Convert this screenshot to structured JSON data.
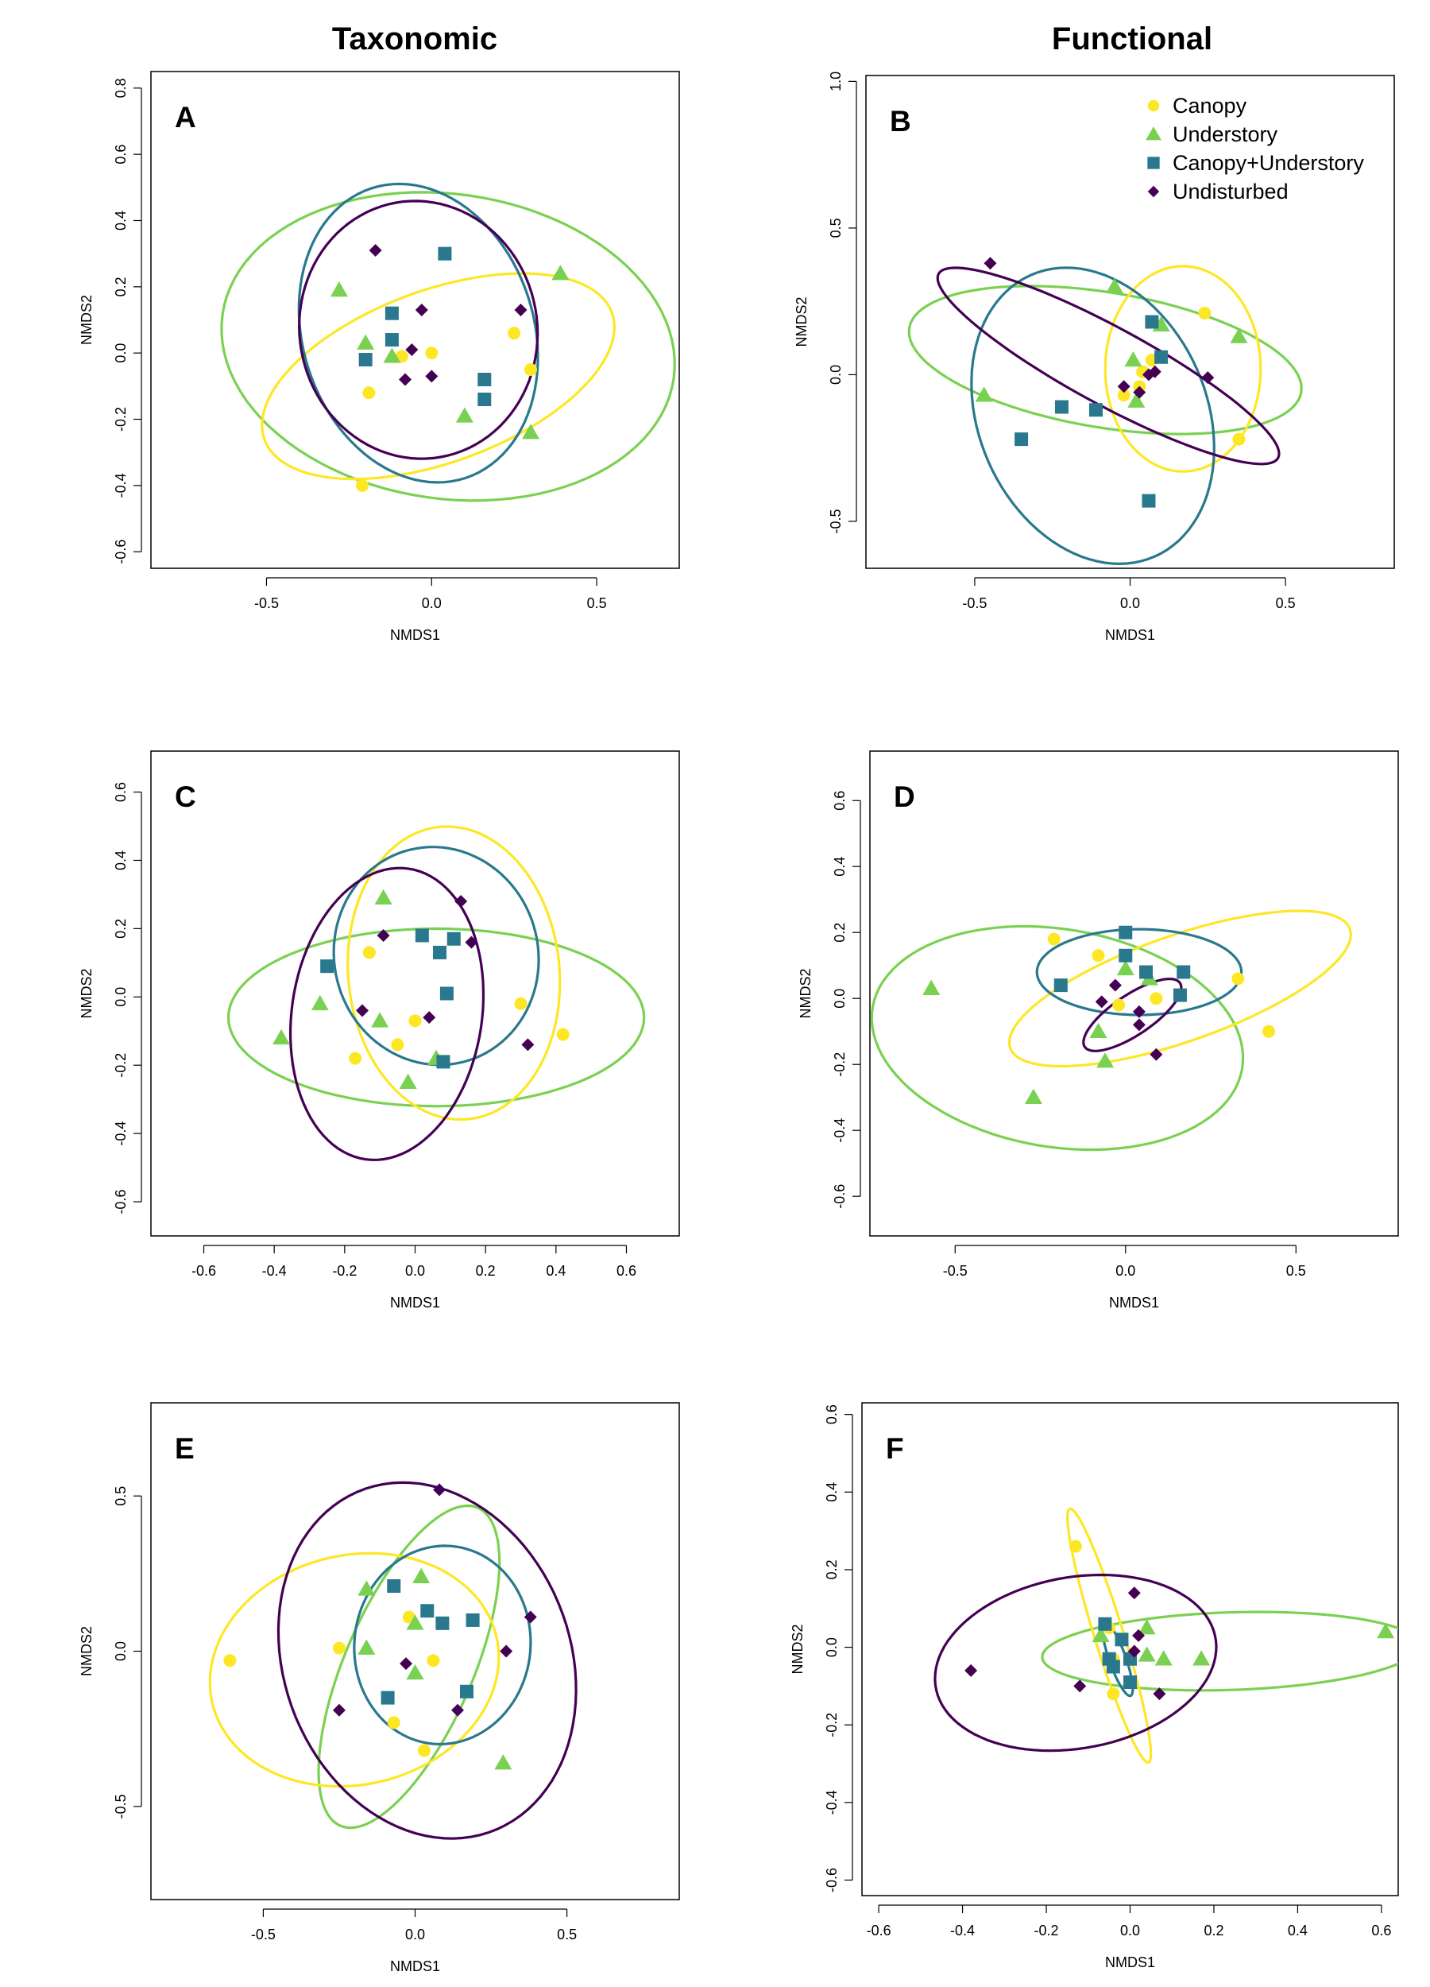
{
  "column_titles": [
    "Taxonomic",
    "Functional"
  ],
  "legend": {
    "panel": "B",
    "items": [
      {
        "label": "Canopy",
        "group": "canopy"
      },
      {
        "label": "Understory",
        "group": "understory"
      },
      {
        "label": "Canopy+Understory",
        "group": "cu"
      },
      {
        "label": "Undisturbed",
        "group": "undisturbed"
      }
    ]
  },
  "groups": {
    "canopy": {
      "color": "#FDE725",
      "marker": "circle"
    },
    "understory": {
      "color": "#7AD151",
      "marker": "triangle"
    },
    "cu": {
      "color": "#2A788E",
      "marker": "square"
    },
    "undisturbed": {
      "color": "#440154",
      "marker": "diamond"
    }
  },
  "chart_data": [
    {
      "type": "scatter",
      "panel": "A",
      "xlabel": "NMDS1",
      "ylabel": "NMDS2",
      "xlim": [
        -0.85,
        0.75
      ],
      "ylim": [
        -0.65,
        0.85
      ],
      "xticks": [
        -0.5,
        0.0,
        0.5
      ],
      "yticks": [
        -0.6,
        -0.4,
        -0.2,
        0.0,
        0.2,
        0.4,
        0.6,
        0.8
      ],
      "series": [
        {
          "group": "canopy",
          "points": [
            [
              -0.09,
              -0.01
            ],
            [
              0.0,
              0.0
            ],
            [
              -0.19,
              -0.12
            ],
            [
              0.25,
              0.06
            ],
            [
              0.3,
              -0.05
            ],
            [
              -0.21,
              -0.4
            ]
          ]
        },
        {
          "group": "understory",
          "points": [
            [
              -0.28,
              0.19
            ],
            [
              -0.2,
              0.03
            ],
            [
              -0.12,
              -0.01
            ],
            [
              0.39,
              0.24
            ],
            [
              0.1,
              -0.19
            ],
            [
              0.3,
              -0.24
            ]
          ]
        },
        {
          "group": "cu",
          "points": [
            [
              0.04,
              0.3
            ],
            [
              -0.12,
              0.12
            ],
            [
              -0.12,
              0.04
            ],
            [
              -0.2,
              -0.02
            ],
            [
              0.16,
              -0.08
            ],
            [
              0.16,
              -0.14
            ]
          ]
        },
        {
          "group": "undisturbed",
          "points": [
            [
              -0.17,
              0.31
            ],
            [
              -0.03,
              0.13
            ],
            [
              0.27,
              0.13
            ],
            [
              -0.06,
              0.01
            ],
            [
              -0.08,
              -0.08
            ],
            [
              0.0,
              -0.07
            ]
          ]
        }
      ],
      "ellipses": [
        {
          "group": "canopy",
          "cx": 0.02,
          "cy": -0.07,
          "rx": 0.56,
          "ry": 0.26,
          "angle_deg": 20
        },
        {
          "group": "understory",
          "cx": 0.05,
          "cy": 0.02,
          "rx": 0.69,
          "ry": 0.46,
          "angle_deg": -8
        },
        {
          "group": "cu",
          "cx": -0.04,
          "cy": 0.06,
          "rx": 0.35,
          "ry": 0.46,
          "angle_deg": 18
        },
        {
          "group": "undisturbed",
          "cx": -0.04,
          "cy": 0.07,
          "rx": 0.36,
          "ry": 0.39,
          "angle_deg": 10
        }
      ]
    },
    {
      "type": "scatter",
      "panel": "B",
      "xlabel": "NMDS1",
      "ylabel": "NMDS2",
      "xlim": [
        -0.85,
        0.85
      ],
      "ylim": [
        -0.66,
        1.02
      ],
      "xticks": [
        -0.5,
        0.0,
        0.5
      ],
      "yticks": [
        -0.5,
        0.0,
        0.5,
        1.0
      ],
      "series": [
        {
          "group": "canopy",
          "points": [
            [
              0.24,
              0.21
            ],
            [
              0.35,
              -0.22
            ],
            [
              0.04,
              0.01
            ],
            [
              0.07,
              0.05
            ],
            [
              -0.02,
              -0.07
            ],
            [
              0.03,
              -0.04
            ]
          ]
        },
        {
          "group": "understory",
          "points": [
            [
              -0.05,
              0.3
            ],
            [
              0.1,
              0.17
            ],
            [
              0.35,
              0.13
            ],
            [
              0.01,
              0.05
            ],
            [
              -0.47,
              -0.07
            ],
            [
              0.02,
              -0.09
            ]
          ]
        },
        {
          "group": "cu",
          "points": [
            [
              0.07,
              0.18
            ],
            [
              0.1,
              0.06
            ],
            [
              -0.22,
              -0.11
            ],
            [
              -0.11,
              -0.12
            ],
            [
              -0.35,
              -0.22
            ],
            [
              0.06,
              -0.43
            ]
          ]
        },
        {
          "group": "undisturbed",
          "points": [
            [
              -0.45,
              0.38
            ],
            [
              0.25,
              -0.01
            ],
            [
              0.06,
              0.0
            ],
            [
              0.08,
              0.01
            ],
            [
              -0.02,
              -0.04
            ],
            [
              0.03,
              -0.06
            ]
          ]
        }
      ],
      "ellipses": [
        {
          "group": "canopy",
          "cx": 0.17,
          "cy": 0.02,
          "rx": 0.25,
          "ry": 0.35,
          "angle_deg": 0
        },
        {
          "group": "understory",
          "cx": -0.08,
          "cy": 0.05,
          "rx": 0.64,
          "ry": 0.23,
          "angle_deg": -10
        },
        {
          "group": "cu",
          "cx": -0.12,
          "cy": -0.14,
          "rx": 0.37,
          "ry": 0.52,
          "angle_deg": 20
        },
        {
          "group": "undisturbed",
          "cx": -0.07,
          "cy": 0.03,
          "rx": 0.63,
          "ry": 0.13,
          "angle_deg": -30
        }
      ]
    },
    {
      "type": "scatter",
      "panel": "C",
      "xlabel": "NMDS1",
      "ylabel": "NMDS2",
      "xlim": [
        -0.75,
        0.75
      ],
      "ylim": [
        -0.7,
        0.72
      ],
      "xticks": [
        -0.6,
        -0.4,
        -0.2,
        0.0,
        0.2,
        0.4,
        0.6
      ],
      "yticks": [
        -0.6,
        -0.4,
        -0.2,
        0.0,
        0.2,
        0.4,
        0.6
      ],
      "series": [
        {
          "group": "canopy",
          "points": [
            [
              -0.13,
              0.13
            ],
            [
              0.0,
              -0.07
            ],
            [
              0.3,
              -0.02
            ],
            [
              0.42,
              -0.11
            ],
            [
              -0.17,
              -0.18
            ],
            [
              -0.05,
              -0.14
            ]
          ]
        },
        {
          "group": "understory",
          "points": [
            [
              -0.09,
              0.29
            ],
            [
              -0.27,
              -0.02
            ],
            [
              -0.38,
              -0.12
            ],
            [
              -0.1,
              -0.07
            ],
            [
              0.06,
              -0.18
            ],
            [
              -0.02,
              -0.25
            ]
          ]
        },
        {
          "group": "cu",
          "points": [
            [
              0.02,
              0.18
            ],
            [
              0.11,
              0.17
            ],
            [
              0.07,
              0.13
            ],
            [
              -0.25,
              0.09
            ],
            [
              0.09,
              0.01
            ],
            [
              0.08,
              -0.19
            ]
          ]
        },
        {
          "group": "undisturbed",
          "points": [
            [
              0.13,
              0.28
            ],
            [
              0.16,
              0.16
            ],
            [
              -0.09,
              0.18
            ],
            [
              -0.15,
              -0.04
            ],
            [
              0.04,
              -0.06
            ],
            [
              0.32,
              -0.14
            ]
          ]
        }
      ],
      "ellipses": [
        {
          "group": "canopy",
          "cx": 0.11,
          "cy": 0.07,
          "rx": 0.3,
          "ry": 0.43,
          "angle_deg": 5
        },
        {
          "group": "understory",
          "cx": 0.06,
          "cy": -0.06,
          "rx": 0.59,
          "ry": 0.26,
          "angle_deg": 0
        },
        {
          "group": "cu",
          "cx": 0.06,
          "cy": 0.12,
          "rx": 0.29,
          "ry": 0.32,
          "angle_deg": 10
        },
        {
          "group": "undisturbed",
          "cx": -0.08,
          "cy": -0.05,
          "rx": 0.27,
          "ry": 0.43,
          "angle_deg": -8
        }
      ]
    },
    {
      "type": "scatter",
      "panel": "D",
      "xlabel": "NMDS1",
      "ylabel": "NMDS2",
      "xlim": [
        -0.75,
        0.8
      ],
      "ylim": [
        -0.72,
        0.75
      ],
      "xticks": [
        -0.5,
        0.0,
        0.5
      ],
      "yticks": [
        -0.6,
        -0.4,
        -0.2,
        0.0,
        0.2,
        0.4,
        0.6
      ],
      "series": [
        {
          "group": "canopy",
          "points": [
            [
              -0.21,
              0.18
            ],
            [
              -0.08,
              0.13
            ],
            [
              0.33,
              0.06
            ],
            [
              0.42,
              -0.1
            ],
            [
              -0.02,
              -0.02
            ],
            [
              0.09,
              0.0
            ]
          ]
        },
        {
          "group": "understory",
          "points": [
            [
              -0.57,
              0.03
            ],
            [
              -0.27,
              -0.3
            ],
            [
              -0.08,
              -0.1
            ],
            [
              -0.06,
              -0.19
            ],
            [
              0.0,
              0.09
            ],
            [
              0.07,
              0.06
            ]
          ]
        },
        {
          "group": "cu",
          "points": [
            [
              0.0,
              0.2
            ],
            [
              0.0,
              0.13
            ],
            [
              0.06,
              0.08
            ],
            [
              0.17,
              0.08
            ],
            [
              -0.19,
              0.04
            ],
            [
              0.16,
              0.01
            ]
          ]
        },
        {
          "group": "undisturbed",
          "points": [
            [
              -0.03,
              0.04
            ],
            [
              -0.07,
              -0.01
            ],
            [
              0.09,
              -0.17
            ],
            [
              0.04,
              -0.04
            ],
            [
              0.04,
              -0.08
            ]
          ]
        }
      ],
      "ellipses": [
        {
          "group": "canopy",
          "cx": 0.16,
          "cy": 0.03,
          "rx": 0.53,
          "ry": 0.16,
          "angle_deg": 20
        },
        {
          "group": "understory",
          "cx": -0.2,
          "cy": -0.12,
          "rx": 0.55,
          "ry": 0.33,
          "angle_deg": -10
        },
        {
          "group": "cu",
          "cx": 0.04,
          "cy": 0.08,
          "rx": 0.3,
          "ry": 0.13,
          "angle_deg": 0
        },
        {
          "group": "undisturbed",
          "cx": 0.02,
          "cy": -0.05,
          "rx": 0.17,
          "ry": 0.06,
          "angle_deg": 35
        }
      ]
    },
    {
      "type": "scatter",
      "panel": "E",
      "xlabel": "NMDS1",
      "ylabel": "NMDS2",
      "xlim": [
        -0.87,
        0.87
      ],
      "ylim": [
        -0.8,
        0.8
      ],
      "xticks": [
        -0.5,
        0.0,
        0.5
      ],
      "yticks": [
        -0.5,
        0.0,
        0.5
      ],
      "series": [
        {
          "group": "canopy",
          "points": [
            [
              -0.61,
              -0.03
            ],
            [
              -0.25,
              0.01
            ],
            [
              -0.02,
              0.11
            ],
            [
              0.06,
              -0.03
            ],
            [
              -0.07,
              -0.23
            ],
            [
              0.03,
              -0.32
            ]
          ]
        },
        {
          "group": "understory",
          "points": [
            [
              -0.16,
              0.2
            ],
            [
              0.02,
              0.24
            ],
            [
              0.0,
              0.09
            ],
            [
              -0.16,
              0.01
            ],
            [
              0.0,
              -0.07
            ],
            [
              0.29,
              -0.36
            ]
          ]
        },
        {
          "group": "cu",
          "points": [
            [
              -0.07,
              0.21
            ],
            [
              0.04,
              0.13
            ],
            [
              0.09,
              0.09
            ],
            [
              0.19,
              0.1
            ],
            [
              0.17,
              -0.13
            ],
            [
              -0.09,
              -0.15
            ]
          ]
        },
        {
          "group": "undisturbed",
          "points": [
            [
              0.08,
              0.52
            ],
            [
              0.38,
              0.11
            ],
            [
              0.3,
              0.0
            ],
            [
              -0.03,
              -0.04
            ],
            [
              0.14,
              -0.19
            ],
            [
              -0.25,
              -0.19
            ]
          ]
        }
      ],
      "ellipses": [
        {
          "group": "canopy",
          "cx": -0.2,
          "cy": -0.06,
          "rx": 0.48,
          "ry": 0.37,
          "angle_deg": 12
        },
        {
          "group": "understory",
          "cx": -0.02,
          "cy": -0.05,
          "rx": 0.21,
          "ry": 0.56,
          "angle_deg": -24
        },
        {
          "group": "cu",
          "cx": 0.09,
          "cy": 0.02,
          "rx": 0.29,
          "ry": 0.32,
          "angle_deg": -8
        },
        {
          "group": "undisturbed",
          "cx": 0.04,
          "cy": -0.03,
          "rx": 0.47,
          "ry": 0.59,
          "angle_deg": 23
        }
      ]
    },
    {
      "type": "scatter",
      "panel": "F",
      "xlabel": "NMDS1",
      "ylabel": "NMDS2",
      "xlim": [
        -0.64,
        0.64
      ],
      "ylim": [
        -0.64,
        0.63
      ],
      "xticks": [
        -0.6,
        -0.4,
        -0.2,
        0.0,
        0.2,
        0.4,
        0.6
      ],
      "yticks": [
        -0.6,
        -0.4,
        -0.2,
        0.0,
        0.2,
        0.4,
        0.6
      ],
      "series": [
        {
          "group": "canopy",
          "points": [
            [
              -0.13,
              0.26
            ],
            [
              -0.05,
              0.05
            ],
            [
              -0.04,
              -0.03
            ],
            [
              0.0,
              -0.03
            ],
            [
              -0.04,
              -0.12
            ],
            [
              -0.02,
              0.02
            ]
          ]
        },
        {
          "group": "understory",
          "points": [
            [
              0.61,
              0.04
            ],
            [
              0.04,
              0.05
            ],
            [
              0.08,
              -0.03
            ],
            [
              0.17,
              -0.03
            ],
            [
              0.04,
              -0.02
            ],
            [
              -0.07,
              0.03
            ]
          ]
        },
        {
          "group": "cu",
          "points": [
            [
              -0.06,
              0.06
            ],
            [
              -0.02,
              0.02
            ],
            [
              -0.05,
              -0.03
            ],
            [
              0.0,
              -0.03
            ],
            [
              -0.04,
              -0.05
            ],
            [
              0.0,
              -0.09
            ]
          ]
        },
        {
          "group": "undisturbed",
          "points": [
            [
              0.01,
              0.14
            ],
            [
              0.02,
              0.03
            ],
            [
              0.01,
              -0.01
            ],
            [
              -0.38,
              -0.06
            ],
            [
              -0.12,
              -0.1
            ],
            [
              0.07,
              -0.12
            ]
          ]
        }
      ],
      "ellipses": [
        {
          "group": "canopy",
          "cx": -0.05,
          "cy": 0.03,
          "rx": 0.34,
          "ry": 0.035,
          "angle_deg": -74
        },
        {
          "group": "understory",
          "cx": 0.24,
          "cy": -0.01,
          "rx": 0.45,
          "ry": 0.1,
          "angle_deg": 2
        },
        {
          "group": "cu",
          "cx": -0.03,
          "cy": -0.03,
          "rx": 0.1,
          "ry": 0.02,
          "angle_deg": -72
        },
        {
          "group": "undisturbed",
          "cx": -0.13,
          "cy": -0.04,
          "rx": 0.34,
          "ry": 0.22,
          "angle_deg": 12
        }
      ]
    }
  ]
}
